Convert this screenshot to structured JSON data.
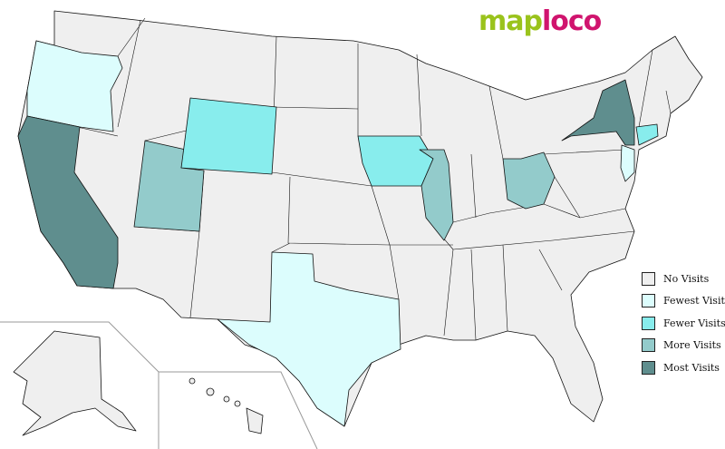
{
  "logo": {
    "part1": "map",
    "part2": "loco"
  },
  "colors": {
    "no_visits": "#efefef",
    "fewest_visits": "#dcfdfd",
    "fewer_visits": "#88eded",
    "more_visits": "#93cbcb",
    "most_visits": "#5f8e8e"
  },
  "legend": [
    {
      "label": "No Visits",
      "level": "no_visits"
    },
    {
      "label": "Fewest Visits",
      "level": "fewest_visits"
    },
    {
      "label": "Fewer Visits",
      "level": "fewer_visits"
    },
    {
      "label": "More Visits",
      "level": "more_visits"
    },
    {
      "label": "Most Visits",
      "level": "most_visits"
    }
  ],
  "states": {
    "California": "most_visits",
    "New York": "most_visits",
    "Utah": "more_visits",
    "Illinois": "more_visits",
    "Ohio": "more_visits",
    "Wyoming": "fewer_visits",
    "Iowa": "fewer_visits",
    "Connecticut": "fewer_visits",
    "Oregon": "fewest_visits",
    "Texas": "fewest_visits",
    "New Jersey": "fewest_visits"
  }
}
